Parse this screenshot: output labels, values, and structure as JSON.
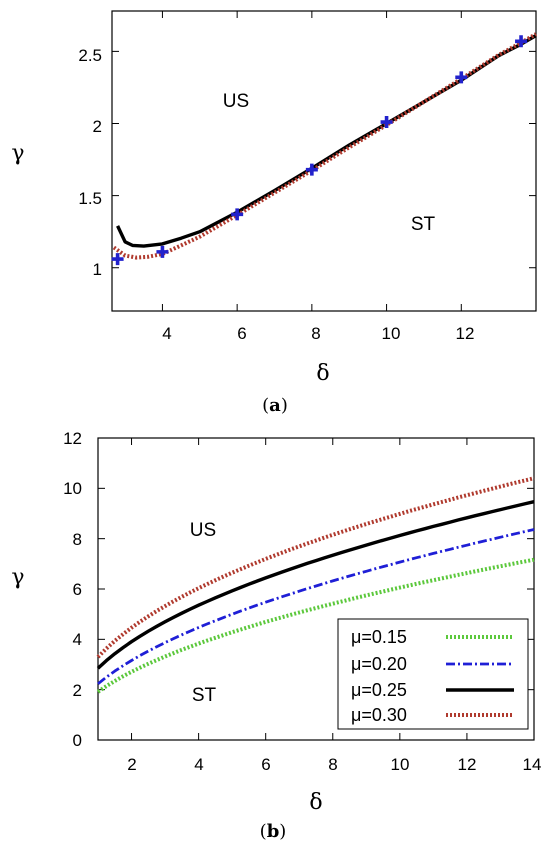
{
  "chart_data": [
    {
      "type": "line",
      "panel_label": "a",
      "xlabel": "δ",
      "ylabel": "γ",
      "xlim": [
        2.65,
        14
      ],
      "ylim": [
        0.7,
        2.78
      ],
      "xticks": [
        "4",
        "6",
        "8",
        "10",
        "12"
      ],
      "yticks": [
        "1",
        "1.5",
        "2",
        "2.5"
      ],
      "regions": [
        "US",
        "ST"
      ],
      "series": [
        {
          "style": "solid",
          "color": "#000000",
          "x": [
            2.8,
            3.0,
            3.2,
            3.5,
            4.0,
            4.5,
            5.0,
            6.0,
            7.0,
            8.0,
            9.0,
            10.0,
            11.0,
            12.0,
            13.0,
            13.6,
            14.0
          ],
          "y": [
            1.29,
            1.18,
            1.155,
            1.15,
            1.165,
            1.205,
            1.25,
            1.385,
            1.535,
            1.69,
            1.85,
            2.0,
            2.15,
            2.3,
            2.47,
            2.55,
            2.61
          ]
        },
        {
          "style": "dotted",
          "color": "#b03a2e",
          "x": [
            2.7,
            3.0,
            3.3,
            3.6,
            4.0,
            4.5,
            5.0,
            6.0,
            7.0,
            8.0,
            9.0,
            10.0,
            11.0,
            12.0,
            13.0,
            13.6,
            14.0
          ],
          "y": [
            1.14,
            1.085,
            1.07,
            1.075,
            1.095,
            1.155,
            1.215,
            1.365,
            1.52,
            1.675,
            1.835,
            1.99,
            2.15,
            2.31,
            2.475,
            2.56,
            2.62
          ]
        },
        {
          "style": "markers",
          "color": "#2222cc",
          "x": [
            2.8,
            4.0,
            6.0,
            8.0,
            10.0,
            12.0,
            13.6
          ],
          "y": [
            1.06,
            1.11,
            1.37,
            1.68,
            2.01,
            2.32,
            2.57
          ]
        }
      ]
    },
    {
      "type": "line",
      "panel_label": "b",
      "xlabel": "δ",
      "ylabel": "γ",
      "xlim": [
        1,
        14
      ],
      "ylim": [
        0,
        12
      ],
      "xticks": [
        "2",
        "4",
        "6",
        "8",
        "10",
        "12",
        "14"
      ],
      "yticks": [
        "0",
        "2",
        "4",
        "6",
        "8",
        "10",
        "12"
      ],
      "regions": [
        "US",
        "ST"
      ],
      "legend_position": "bottom-right",
      "series": [
        {
          "name": "μ=0.15",
          "style": "dotted",
          "color": "#5cc83c",
          "coef": 1.915,
          "exp": 0.5
        },
        {
          "name": "μ=0.20",
          "style": "dashdot",
          "color": "#1f1fd6",
          "coef": 2.235,
          "exp": 0.5
        },
        {
          "name": "μ=0.25",
          "style": "solid",
          "color": "#000000",
          "coef": 2.85,
          "exp": 0.455
        },
        {
          "name": "μ=0.30",
          "style": "dotted",
          "color": "#b03a2e",
          "coef": 3.3,
          "exp": 0.435
        }
      ]
    }
  ]
}
